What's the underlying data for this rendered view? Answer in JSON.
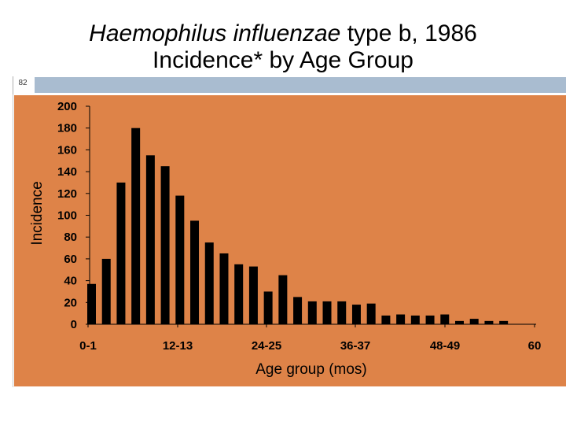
{
  "slide": {
    "title_italic": "Haemophilus influenzae",
    "title_rest": " type b, 1986",
    "subtitle": "Incidence* by Age Group",
    "slide_number": "82"
  },
  "colors": {
    "panel": "#de8348",
    "bar": "#000000",
    "topbar": "#a9bcd0"
  },
  "chart_data": {
    "type": "bar",
    "xlabel": "Age group (mos)",
    "ylabel": "Incidence",
    "ylim": [
      0,
      200
    ],
    "yticks": [
      "200",
      "180",
      "160",
      "140",
      "120",
      "100",
      "80",
      "60",
      "40",
      "20",
      "0"
    ],
    "xtick_labels": [
      "0-1",
      "12-13",
      "24-25",
      "36-37",
      "48-49",
      "60"
    ],
    "grid": false,
    "values": [
      37,
      60,
      130,
      180,
      155,
      145,
      118,
      95,
      75,
      65,
      55,
      53,
      30,
      45,
      25,
      21,
      21,
      21,
      18,
      19,
      8,
      9,
      8,
      8,
      9,
      3,
      5,
      3,
      3
    ]
  }
}
